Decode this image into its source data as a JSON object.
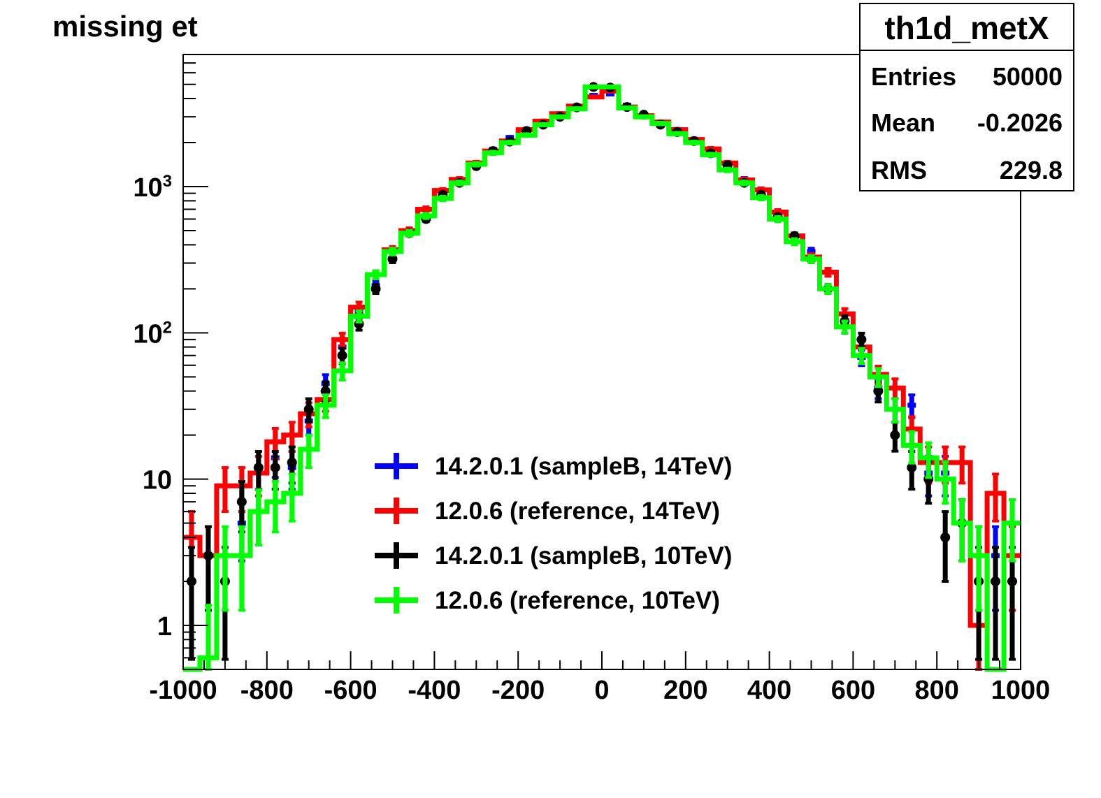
{
  "chart_data": {
    "type": "histogram",
    "title": "missing et",
    "xlabel": "",
    "ylabel": "",
    "xlim": [
      -1000,
      1000
    ],
    "ylim": [
      0.5,
      8000
    ],
    "y_scale": "log",
    "bin_width": 40,
    "x_ticks": [
      -1000,
      -800,
      -600,
      -400,
      -200,
      0,
      200,
      400,
      600,
      800,
      1000
    ],
    "x_tick_labels": [
      "-1000",
      "-800",
      "-600",
      "-400",
      "-200",
      "0",
      "200",
      "400",
      "600",
      "800",
      "1000"
    ],
    "y_ticks": [
      1,
      10,
      100,
      1000
    ],
    "y_tick_labels": [
      {
        "base": "1",
        "exp": ""
      },
      {
        "base": "10",
        "exp": ""
      },
      {
        "base": "10",
        "exp": "2"
      },
      {
        "base": "10",
        "exp": "3"
      }
    ],
    "legend_position": "bottom-center",
    "stats": {
      "name": "th1d_metX",
      "rows": [
        {
          "label": "Entries",
          "value": "50000"
        },
        {
          "label": "Mean",
          "value": "-0.2026"
        },
        {
          "label": "RMS",
          "value": "229.8"
        }
      ]
    },
    "series": [
      {
        "name": "14.2.0.1 (sampleB, 14TeV)",
        "color": "#0000ff",
        "style": "errorbar",
        "x": [
          -980,
          -940,
          -900,
          -860,
          -820,
          -780,
          -740,
          -700,
          -660,
          -620,
          -580,
          -540,
          -500,
          -460,
          -420,
          -380,
          -340,
          -300,
          -260,
          -220,
          -180,
          -140,
          -100,
          -60,
          -20,
          20,
          60,
          100,
          140,
          180,
          220,
          260,
          300,
          340,
          380,
          420,
          460,
          500,
          540,
          580,
          620,
          660,
          700,
          740,
          780,
          820,
          860,
          900,
          940,
          980
        ],
        "values": [
          4,
          0,
          0,
          5,
          6,
          14,
          12,
          25,
          45,
          80,
          140,
          210,
          320,
          480,
          620,
          920,
          1080,
          1420,
          1790,
          2160,
          2450,
          2760,
          3050,
          3550,
          4200,
          4300,
          3600,
          3050,
          2750,
          2450,
          2050,
          1800,
          1420,
          1120,
          880,
          640,
          460,
          360,
          200,
          110,
          68,
          42,
          30,
          32,
          11,
          11,
          5,
          3,
          3,
          3
        ]
      },
      {
        "name": "12.0.6 (reference, 14TeV)",
        "color": "#ff0000",
        "style": "step",
        "x": [
          -980,
          -940,
          -900,
          -860,
          -820,
          -780,
          -740,
          -700,
          -660,
          -620,
          -580,
          -540,
          -500,
          -460,
          -420,
          -380,
          -340,
          -300,
          -260,
          -220,
          -180,
          -140,
          -100,
          -60,
          -20,
          20,
          60,
          100,
          140,
          180,
          220,
          260,
          300,
          340,
          380,
          420,
          460,
          500,
          540,
          580,
          620,
          660,
          700,
          740,
          780,
          820,
          860,
          900,
          940,
          980
        ],
        "values": [
          4,
          3,
          9,
          9,
          11,
          18,
          20,
          28,
          35,
          90,
          150,
          250,
          370,
          500,
          700,
          940,
          1120,
          1450,
          1750,
          2050,
          2450,
          2800,
          3150,
          3550,
          4100,
          4500,
          3500,
          3050,
          2760,
          2450,
          2100,
          1810,
          1450,
          1110,
          950,
          670,
          460,
          330,
          260,
          135,
          80,
          52,
          42,
          22,
          13,
          13,
          13,
          1,
          8,
          3
        ]
      },
      {
        "name": "14.2.0.1 (sampleB, 10TeV)",
        "color": "#000000",
        "style": "errorbar",
        "x": [
          -980,
          -940,
          -900,
          -860,
          -820,
          -780,
          -740,
          -700,
          -660,
          -620,
          -580,
          -540,
          -500,
          -460,
          -420,
          -380,
          -340,
          -300,
          -260,
          -220,
          -180,
          -140,
          -100,
          -60,
          -20,
          20,
          60,
          100,
          140,
          180,
          220,
          260,
          300,
          340,
          380,
          420,
          460,
          500,
          540,
          580,
          620,
          660,
          700,
          740,
          780,
          820,
          860,
          900,
          940,
          980
        ],
        "values": [
          2,
          3,
          2,
          7,
          12,
          12,
          13,
          30,
          40,
          70,
          115,
          200,
          320,
          480,
          600,
          880,
          1060,
          1380,
          1750,
          2030,
          2400,
          2650,
          3000,
          3480,
          4800,
          4750,
          3500,
          3100,
          2650,
          2360,
          2050,
          1690,
          1400,
          1060,
          880,
          620,
          460,
          320,
          200,
          120,
          90,
          40,
          20,
          12,
          10,
          4,
          5,
          2,
          2,
          2
        ]
      },
      {
        "name": "12.0.6 (reference, 10TeV)",
        "color": "#00ff00",
        "style": "step",
        "x": [
          -980,
          -940,
          -900,
          -860,
          -820,
          -780,
          -740,
          -700,
          -660,
          -620,
          -580,
          -540,
          -500,
          -460,
          -420,
          -380,
          -340,
          -300,
          -260,
          -220,
          -180,
          -140,
          -100,
          -60,
          -20,
          20,
          60,
          100,
          140,
          180,
          220,
          260,
          300,
          340,
          380,
          420,
          460,
          500,
          540,
          580,
          620,
          660,
          700,
          740,
          780,
          820,
          860,
          900,
          940,
          980
        ],
        "values": [
          0.4,
          0.6,
          3,
          3,
          6,
          7,
          8,
          16,
          32,
          55,
          130,
          250,
          360,
          480,
          630,
          830,
          1060,
          1420,
          1700,
          2000,
          2250,
          2650,
          3000,
          3400,
          4800,
          4800,
          3450,
          3000,
          2700,
          2300,
          2000,
          1650,
          1300,
          1060,
          840,
          600,
          420,
          320,
          200,
          110,
          70,
          50,
          30,
          17,
          14,
          10,
          5,
          3,
          0.4,
          5
        ]
      }
    ]
  },
  "legend": [
    {
      "label": "14.2.0.1 (sampleB, 14TeV)",
      "color": "#0000ff"
    },
    {
      "label": "12.0.6 (reference, 14TeV)",
      "color": "#ff0000"
    },
    {
      "label": "14.2.0.1 (sampleB, 10TeV)",
      "color": "#000000"
    },
    {
      "label": "12.0.6 (reference, 10TeV)",
      "color": "#00ff00"
    }
  ]
}
